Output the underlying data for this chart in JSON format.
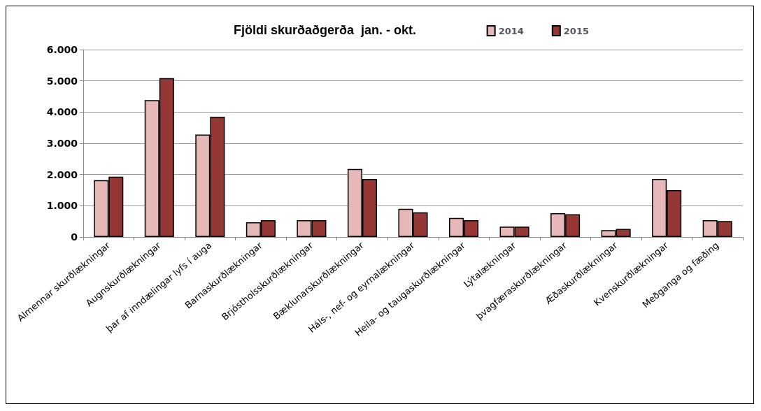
{
  "chart_data": {
    "type": "bar",
    "title": "Fjöldi skurðaðgerða  jan. - okt.",
    "categories": [
      "Almennar skurðlækningar",
      "Augnskurðlækningar",
      "þar af inndælingar lyfs í auga",
      "Barnaskurðlækningar",
      "Brjóstholsskurðlækningar",
      "Bæklunarskurðlækningar",
      "Háls-, nef- og eyrnalækningar",
      "Heila- og taugaskurðlækningar",
      "Lýtalækningar",
      "þvagfæraskurðlækningar",
      "Æðaskurðlækningar",
      "Kvenskurðlækningar",
      "Meðganga og fæðing"
    ],
    "series": [
      {
        "name": "2014",
        "color": "#e6b8b7",
        "values": [
          1820,
          4380,
          3280,
          470,
          540,
          2180,
          900,
          610,
          330,
          760,
          220,
          1860,
          540
        ]
      },
      {
        "name": "2015",
        "color": "#953735",
        "values": [
          1930,
          5090,
          3850,
          540,
          540,
          1860,
          790,
          540,
          330,
          730,
          260,
          1500,
          510
        ]
      }
    ],
    "ylim": [
      0,
      6000
    ],
    "yticks": [
      {
        "value": 0,
        "label": "0"
      },
      {
        "value": 1000,
        "label": "1.000"
      },
      {
        "value": 2000,
        "label": "2.000"
      },
      {
        "value": 3000,
        "label": "3.000"
      },
      {
        "value": 4000,
        "label": "4.000"
      },
      {
        "value": 5000,
        "label": "5.000"
      },
      {
        "value": 6000,
        "label": "6.000"
      }
    ],
    "grid": "y",
    "legend": "top right"
  }
}
